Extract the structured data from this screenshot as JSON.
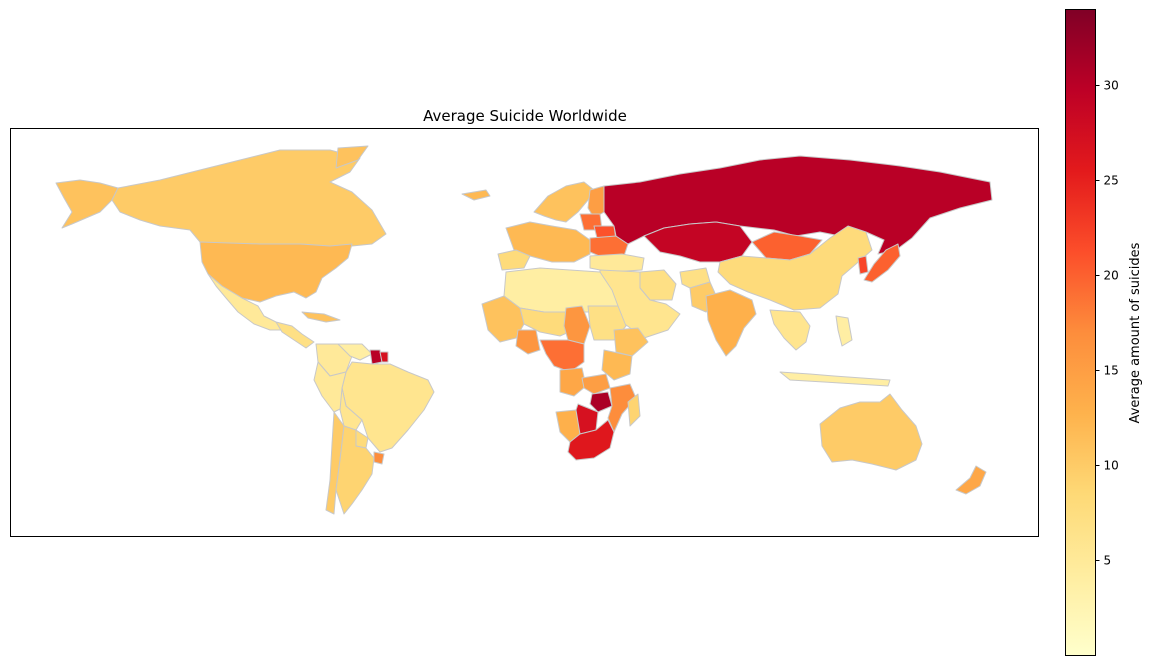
{
  "chart_data": {
    "type": "choropleth",
    "title": "Average Suicide Worldwide",
    "colorbar": {
      "label": "Average amount of suicides",
      "range": [
        0,
        34
      ],
      "ticks": [
        5,
        10,
        15,
        20,
        25,
        30
      ],
      "colormap": "YlOrRd",
      "color_stops": [
        "#ffffcc",
        "#ffeda0",
        "#fed976",
        "#feb24c",
        "#fd8d3c",
        "#fc4e2a",
        "#e31a1c",
        "#bd0026",
        "#800026"
      ]
    },
    "border_color": "#c8c8c8",
    "regions": [
      {
        "name": "Alaska",
        "value": 11
      },
      {
        "name": "Canada",
        "value": 10
      },
      {
        "name": "United States",
        "value": 12
      },
      {
        "name": "Greenland",
        "value": 11
      },
      {
        "name": "Mexico",
        "value": 5
      },
      {
        "name": "Central America",
        "value": 7
      },
      {
        "name": "Cuba",
        "value": 11
      },
      {
        "name": "Colombia",
        "value": 5
      },
      {
        "name": "Venezuela",
        "value": 4
      },
      {
        "name": "Guyana",
        "value": 30
      },
      {
        "name": "Suriname",
        "value": 27
      },
      {
        "name": "Brazil",
        "value": 6
      },
      {
        "name": "Peru",
        "value": 5
      },
      {
        "name": "Bolivia",
        "value": 6
      },
      {
        "name": "Paraguay",
        "value": 8
      },
      {
        "name": "Chile",
        "value": 10
      },
      {
        "name": "Argentina",
        "value": 9
      },
      {
        "name": "Uruguay",
        "value": 17
      },
      {
        "name": "Iceland",
        "value": 12
      },
      {
        "name": "Scandinavia",
        "value": 11
      },
      {
        "name": "Finland",
        "value": 15
      },
      {
        "name": "Baltics",
        "value": 19
      },
      {
        "name": "Belarus",
        "value": 21
      },
      {
        "name": "Ukraine",
        "value": 19
      },
      {
        "name": "Western Europe",
        "value": 12
      },
      {
        "name": "Iberia",
        "value": 8
      },
      {
        "name": "Turkey",
        "value": 5
      },
      {
        "name": "Russia",
        "value": 30
      },
      {
        "name": "Kazakhstan",
        "value": 29
      },
      {
        "name": "Mongolia",
        "value": 20
      },
      {
        "name": "China",
        "value": 8
      },
      {
        "name": "Korea",
        "value": 22
      },
      {
        "name": "Japan",
        "value": 20
      },
      {
        "name": "Iran",
        "value": 7
      },
      {
        "name": "Middle East",
        "value": 6
      },
      {
        "name": "Afghanistan",
        "value": 7
      },
      {
        "name": "Pakistan",
        "value": 10
      },
      {
        "name": "India",
        "value": 13
      },
      {
        "name": "Southeast Asia",
        "value": 6
      },
      {
        "name": "Indonesia",
        "value": 4
      },
      {
        "name": "Philippines",
        "value": 4
      },
      {
        "name": "North Africa",
        "value": 4
      },
      {
        "name": "Sahel",
        "value": 8
      },
      {
        "name": "West Africa",
        "value": 11
      },
      {
        "name": "Nigeria",
        "value": 16
      },
      {
        "name": "Chad",
        "value": 16
      },
      {
        "name": "Sudan",
        "value": 7
      },
      {
        "name": "Ethiopia",
        "value": 11
      },
      {
        "name": "Central Africa",
        "value": 19
      },
      {
        "name": "East Africa",
        "value": 12
      },
      {
        "name": "Angola",
        "value": 14
      },
      {
        "name": "Zambia",
        "value": 15
      },
      {
        "name": "Zimbabwe",
        "value": 31
      },
      {
        "name": "Mozambique",
        "value": 17
      },
      {
        "name": "Namibia",
        "value": 13
      },
      {
        "name": "Botswana",
        "value": 27
      },
      {
        "name": "South Africa",
        "value": 26
      },
      {
        "name": "Madagascar",
        "value": 9
      },
      {
        "name": "Australia",
        "value": 10
      },
      {
        "name": "New Zealand",
        "value": 14
      }
    ]
  }
}
